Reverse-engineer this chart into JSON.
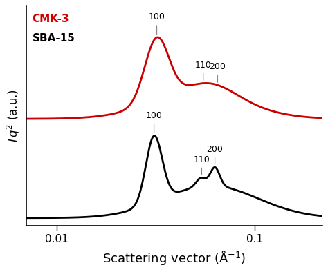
{
  "background_color": "#ffffff",
  "cmk3_color": "#cc0000",
  "sba15_color": "#000000",
  "legend_cmk3": "CMK-3",
  "legend_sba15": "SBA-15",
  "xlim": [
    0.007,
    0.22
  ],
  "q100_cmk3": 0.032,
  "q110_cmk3": 0.055,
  "q200_cmk3": 0.065,
  "q100_sba": 0.031,
  "q110_sba": 0.054,
  "q200_sba": 0.063,
  "ann_fontsize": 9,
  "legend_fontsize": 11,
  "xlabel_fontsize": 13,
  "ylabel_fontsize": 12
}
